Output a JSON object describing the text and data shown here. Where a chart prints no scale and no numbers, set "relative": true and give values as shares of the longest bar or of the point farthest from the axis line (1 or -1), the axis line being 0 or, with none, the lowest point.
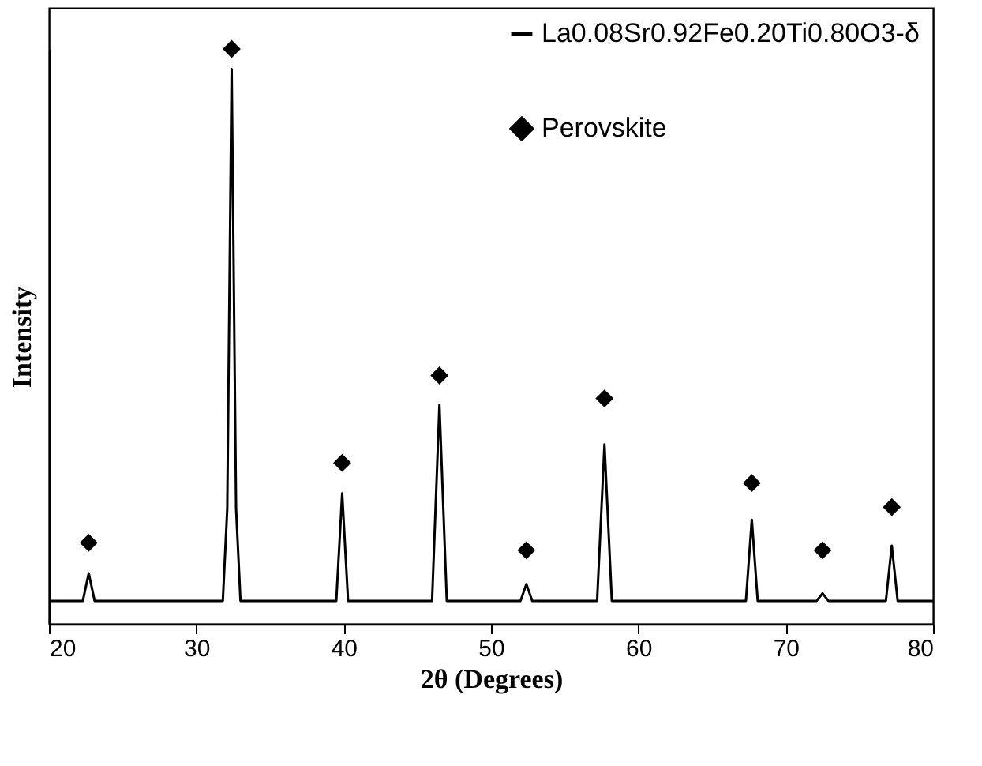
{
  "chart_data": {
    "type": "line",
    "relative": true,
    "xlabel": "2θ (Degrees)",
    "ylabel": "Intensity",
    "xlim": [
      20,
      80
    ],
    "xticks": [
      20,
      30,
      40,
      50,
      60,
      70,
      80
    ],
    "grid": false,
    "legend": "top right",
    "series": [
      {
        "name": "La0.08Sr0.92Fe0.20Ti0.80O3-δ",
        "color": "#000000",
        "line_style": "solid",
        "marker": "none",
        "x": [
          20,
          22.3,
          22.7,
          23.1,
          31.8,
          32.1,
          32.4,
          32.7,
          33.0,
          39.5,
          39.9,
          40.3,
          46.0,
          46.5,
          47.0,
          52.0,
          52.4,
          52.8,
          57.2,
          57.7,
          58.2,
          67.3,
          67.7,
          68.1,
          72.1,
          72.5,
          72.9,
          76.8,
          77.2,
          77.6,
          80
        ],
        "values": [
          0.04,
          0.04,
          0.088,
          0.04,
          0.04,
          0.2,
          0.965,
          0.2,
          0.04,
          0.04,
          0.227,
          0.04,
          0.04,
          0.381,
          0.04,
          0.04,
          0.069,
          0.04,
          0.04,
          0.312,
          0.04,
          0.04,
          0.181,
          0.04,
          0.04,
          0.053,
          0.04,
          0.04,
          0.136,
          0.04,
          0.04
        ]
      },
      {
        "name": "Perovskite",
        "color": "#000000",
        "type": "scatter",
        "marker": "diamond",
        "x": [
          22.7,
          32.4,
          39.9,
          46.5,
          52.4,
          57.7,
          67.7,
          72.5,
          77.2
        ],
        "values": [
          0.141,
          1.0,
          0.28,
          0.432,
          0.128,
          0.392,
          0.245,
          0.128,
          0.203
        ]
      }
    ]
  }
}
